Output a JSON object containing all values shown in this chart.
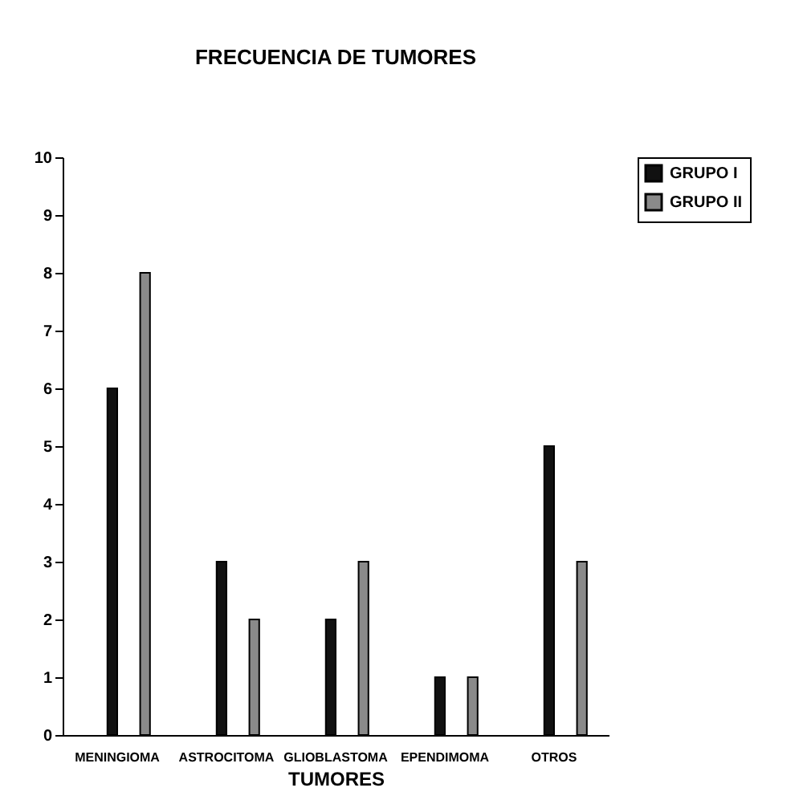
{
  "chart_data": {
    "type": "bar",
    "title": "FRECUENCIA DE TUMORES",
    "xlabel": "TUMORES",
    "categories": [
      "MENINGIOMA",
      "ASTROCITOMA",
      "GLIOBLASTOMA",
      "EPENDIMOMA",
      "OTROS"
    ],
    "series": [
      {
        "name": "GRUPO I",
        "color": "#111111",
        "values": [
          6,
          3,
          2,
          1,
          5
        ]
      },
      {
        "name": "GRUPO II",
        "color": "#8a8a8a",
        "values": [
          8,
          2,
          3,
          1,
          3
        ]
      }
    ],
    "ylim": [
      0,
      10
    ],
    "yticks": [
      0,
      1,
      2,
      3,
      4,
      5,
      6,
      7,
      8,
      9,
      10
    ],
    "grid": false,
    "legend": "right"
  }
}
